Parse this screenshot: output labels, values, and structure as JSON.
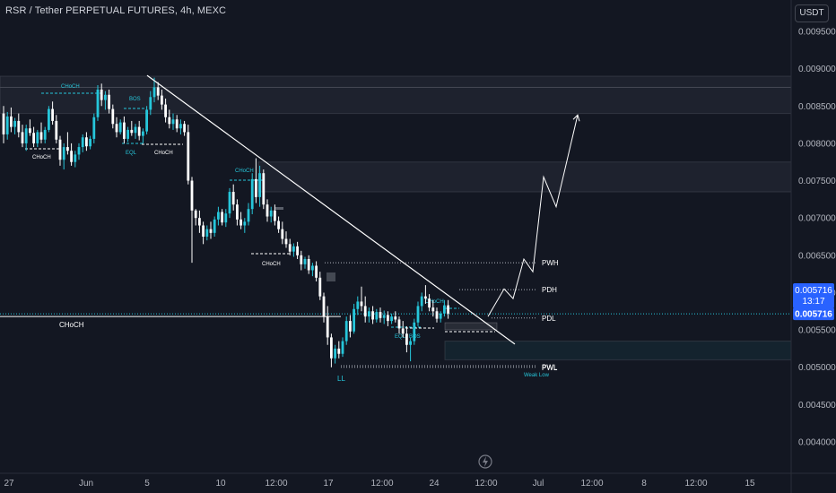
{
  "header": {
    "symbol_title": "RSR / Tether PERPETUAL FUTURES, 4h, MEXC",
    "currency_button": "USDT"
  },
  "price_tag": {
    "price": "0.005716",
    "countdown": "13:17",
    "last": "0.005716"
  },
  "colors": {
    "background": "#131722",
    "candle_up": "#26c6da",
    "candle_down": "#ffffff",
    "annotation_cyan": "#26c6da",
    "price_tag_blue": "#2962ff"
  },
  "chart_data": {
    "type": "candlestick",
    "title": "RSR / Tether PERPETUAL FUTURES, 4h, MEXC",
    "ylim": [
      0.0037,
      0.0099
    ],
    "y_ticks": [
      "0.009500",
      "0.009000",
      "0.008500",
      "0.008000",
      "0.007500",
      "0.007000",
      "0.006500",
      "0.006000",
      "0.005500",
      "0.005000",
      "0.004500",
      "0.004000"
    ],
    "x_ticks": [
      "27",
      "Jun",
      "5",
      "10",
      "12:00",
      "17",
      "12:00",
      "24",
      "12:00",
      "Jul",
      "12:00",
      "8",
      "12:00",
      "15"
    ],
    "candles": [
      [
        0.0084,
        0.0085,
        0.008,
        0.00812
      ],
      [
        0.00812,
        0.00842,
        0.00805,
        0.00836
      ],
      [
        0.00836,
        0.00848,
        0.00815,
        0.00822
      ],
      [
        0.00822,
        0.00834,
        0.00812,
        0.0083
      ],
      [
        0.0083,
        0.0084,
        0.00808,
        0.00815
      ],
      [
        0.00815,
        0.00825,
        0.00795,
        0.008
      ],
      [
        0.008,
        0.00825,
        0.0079,
        0.0082
      ],
      [
        0.0082,
        0.00832,
        0.0081,
        0.00814
      ],
      [
        0.00814,
        0.00822,
        0.00795,
        0.008
      ],
      [
        0.008,
        0.00818,
        0.00795,
        0.00815
      ],
      [
        0.00815,
        0.00828,
        0.008,
        0.00805
      ],
      [
        0.00805,
        0.00822,
        0.008,
        0.00818
      ],
      [
        0.00818,
        0.0085,
        0.00815,
        0.00846
      ],
      [
        0.00846,
        0.00856,
        0.00825,
        0.0083
      ],
      [
        0.0083,
        0.00838,
        0.008,
        0.00805
      ],
      [
        0.00805,
        0.0081,
        0.0077,
        0.00778
      ],
      [
        0.00778,
        0.008,
        0.00765,
        0.00795
      ],
      [
        0.00795,
        0.00815,
        0.00785,
        0.0079
      ],
      [
        0.0079,
        0.008,
        0.0077,
        0.00775
      ],
      [
        0.00775,
        0.0079,
        0.00768,
        0.00785
      ],
      [
        0.00785,
        0.008,
        0.00778,
        0.00795
      ],
      [
        0.00795,
        0.00812,
        0.00788,
        0.00808
      ],
      [
        0.00808,
        0.00815,
        0.0079,
        0.00796
      ],
      [
        0.00796,
        0.0081,
        0.00792,
        0.00806
      ],
      [
        0.00806,
        0.0084,
        0.008,
        0.00835
      ],
      [
        0.00835,
        0.00878,
        0.0083,
        0.00872
      ],
      [
        0.00872,
        0.0088,
        0.0085,
        0.00858
      ],
      [
        0.00858,
        0.0087,
        0.00845,
        0.00865
      ],
      [
        0.00865,
        0.00872,
        0.0084,
        0.00846
      ],
      [
        0.00846,
        0.00852,
        0.0082,
        0.00826
      ],
      [
        0.00826,
        0.00835,
        0.00808,
        0.00815
      ],
      [
        0.00815,
        0.00832,
        0.00812,
        0.00828
      ],
      [
        0.00828,
        0.00836,
        0.008,
        0.00806
      ],
      [
        0.00806,
        0.00822,
        0.00802,
        0.00818
      ],
      [
        0.00818,
        0.0083,
        0.0081,
        0.00814
      ],
      [
        0.00814,
        0.00826,
        0.00806,
        0.00822
      ],
      [
        0.00822,
        0.0083,
        0.00804,
        0.0081
      ],
      [
        0.0081,
        0.0082,
        0.008,
        0.00816
      ],
      [
        0.00816,
        0.0085,
        0.00812,
        0.00845
      ],
      [
        0.00845,
        0.0087,
        0.00838,
        0.00862
      ],
      [
        0.00862,
        0.00888,
        0.00855,
        0.00875
      ],
      [
        0.00875,
        0.00882,
        0.00858,
        0.00864
      ],
      [
        0.00864,
        0.00872,
        0.00845,
        0.00852
      ],
      [
        0.00852,
        0.0086,
        0.00828,
        0.00835
      ],
      [
        0.00835,
        0.00845,
        0.0082,
        0.00826
      ],
      [
        0.00826,
        0.0084,
        0.00818,
        0.00832
      ],
      [
        0.00832,
        0.00838,
        0.00815,
        0.0082
      ],
      [
        0.0082,
        0.00832,
        0.00812,
        0.00826
      ],
      [
        0.00826,
        0.0083,
        0.0081,
        0.00815
      ],
      [
        0.00815,
        0.00825,
        0.00745,
        0.0075
      ],
      [
        0.0075,
        0.00755,
        0.0064,
        0.0071
      ],
      [
        0.0071,
        0.00712,
        0.0069,
        0.007
      ],
      [
        0.007,
        0.0071,
        0.0068,
        0.0069
      ],
      [
        0.0069,
        0.00695,
        0.00665,
        0.00675
      ],
      [
        0.00675,
        0.0069,
        0.0067,
        0.00685
      ],
      [
        0.00685,
        0.00695,
        0.00672,
        0.0068
      ],
      [
        0.0068,
        0.00702,
        0.00675,
        0.00698
      ],
      [
        0.00698,
        0.00715,
        0.0069,
        0.00708
      ],
      [
        0.00708,
        0.00712,
        0.0069,
        0.00694
      ],
      [
        0.00694,
        0.00712,
        0.00688,
        0.00706
      ],
      [
        0.00706,
        0.0074,
        0.007,
        0.00735
      ],
      [
        0.00735,
        0.00745,
        0.0071,
        0.00718
      ],
      [
        0.00718,
        0.00725,
        0.0069,
        0.00698
      ],
      [
        0.00698,
        0.00708,
        0.00685,
        0.0069
      ],
      [
        0.0069,
        0.007,
        0.0068,
        0.00695
      ],
      [
        0.00695,
        0.0072,
        0.0069,
        0.00712
      ],
      [
        0.00712,
        0.0076,
        0.00705,
        0.00752
      ],
      [
        0.00752,
        0.0078,
        0.0072,
        0.00728
      ],
      [
        0.00728,
        0.0077,
        0.00715,
        0.0076
      ],
      [
        0.0076,
        0.00765,
        0.00712,
        0.00718
      ],
      [
        0.00718,
        0.00725,
        0.00695,
        0.00702
      ],
      [
        0.00702,
        0.00715,
        0.00694,
        0.0071
      ],
      [
        0.0071,
        0.00718,
        0.0069,
        0.00696
      ],
      [
        0.00696,
        0.00702,
        0.0068,
        0.00685
      ],
      [
        0.00685,
        0.00695,
        0.00665,
        0.00672
      ],
      [
        0.00672,
        0.00682,
        0.0066,
        0.00665
      ],
      [
        0.00665,
        0.00672,
        0.0065,
        0.00655
      ],
      [
        0.00655,
        0.00666,
        0.00648,
        0.00662
      ],
      [
        0.00662,
        0.00668,
        0.00645,
        0.0065
      ],
      [
        0.0065,
        0.00656,
        0.0063,
        0.00638
      ],
      [
        0.00638,
        0.00648,
        0.00632,
        0.00645
      ],
      [
        0.00645,
        0.0065,
        0.00625,
        0.0063
      ],
      [
        0.0063,
        0.0064,
        0.00622,
        0.00636
      ],
      [
        0.00636,
        0.00642,
        0.00615,
        0.0062
      ],
      [
        0.0062,
        0.00628,
        0.0059,
        0.00595
      ],
      [
        0.00595,
        0.006,
        0.0056,
        0.00568
      ],
      [
        0.00568,
        0.00582,
        0.0053,
        0.0054
      ],
      [
        0.0054,
        0.00545,
        0.005,
        0.00512
      ],
      [
        0.00512,
        0.0053,
        0.00505,
        0.00525
      ],
      [
        0.00525,
        0.00535,
        0.00512,
        0.00518
      ],
      [
        0.00518,
        0.0054,
        0.00514,
        0.00535
      ],
      [
        0.00535,
        0.00568,
        0.0053,
        0.00562
      ],
      [
        0.00562,
        0.0057,
        0.0054,
        0.00548
      ],
      [
        0.00548,
        0.00585,
        0.00545,
        0.00578
      ],
      [
        0.00578,
        0.00595,
        0.0057,
        0.00588
      ],
      [
        0.00588,
        0.00608,
        0.00575,
        0.00582
      ],
      [
        0.00582,
        0.00595,
        0.0056,
        0.00568
      ],
      [
        0.00568,
        0.0058,
        0.0056,
        0.00575
      ],
      [
        0.00575,
        0.00582,
        0.00558,
        0.00564
      ],
      [
        0.00564,
        0.00578,
        0.0056,
        0.00574
      ],
      [
        0.00574,
        0.0058,
        0.0056,
        0.00566
      ],
      [
        0.00566,
        0.00576,
        0.00558,
        0.0057
      ],
      [
        0.0057,
        0.00575,
        0.00555,
        0.00562
      ],
      [
        0.00562,
        0.00572,
        0.00558,
        0.00568
      ],
      [
        0.00568,
        0.00575,
        0.0056,
        0.00564
      ],
      [
        0.00564,
        0.00568,
        0.00545,
        0.00552
      ],
      [
        0.00552,
        0.00562,
        0.0054,
        0.00545
      ],
      [
        0.00545,
        0.00555,
        0.0052,
        0.0053
      ],
      [
        0.0053,
        0.0054,
        0.00508,
        0.00535
      ],
      [
        0.00535,
        0.00565,
        0.0053,
        0.0056
      ],
      [
        0.0056,
        0.00588,
        0.00555,
        0.00582
      ],
      [
        0.00582,
        0.006,
        0.00575,
        0.00595
      ],
      [
        0.00595,
        0.0061,
        0.00585,
        0.00592
      ],
      [
        0.00592,
        0.00598,
        0.00575,
        0.0058
      ],
      [
        0.0058,
        0.0059,
        0.00568,
        0.00575
      ],
      [
        0.00575,
        0.0058,
        0.0056,
        0.00565
      ],
      [
        0.00565,
        0.00575,
        0.0056,
        0.00572
      ],
      [
        0.00572,
        0.0059,
        0.00568,
        0.00583
      ],
      [
        0.00583,
        0.0059,
        0.00565,
        0.00572
      ]
    ],
    "zones": [
      {
        "high": 0.0089,
        "low": 0.00875
      },
      {
        "high": 0.00875,
        "low": 0.0084
      },
      {
        "high": 0.00775,
        "low": 0.00735
      },
      {
        "high": 0.00535,
        "low": 0.0051
      }
    ],
    "levels": [
      {
        "label": "PWH",
        "value": 0.0064
      },
      {
        "label": "PDH",
        "value": 0.00604
      },
      {
        "label": "PDL",
        "value": 0.00566
      },
      {
        "label": "PWL",
        "value": 0.005
      },
      {
        "label": "PWL",
        "value": 0.00502
      },
      {
        "label": "CHoCH",
        "value": 0.00568
      }
    ],
    "labels_cyan": [
      "CHoCH",
      "BOS",
      "EQL",
      "CHoCH",
      "CHoCH",
      "EQL",
      "BOS",
      "LL",
      "Weak Low"
    ],
    "labels_white": [
      "CHoCH",
      "CHoCH",
      "CHoCH"
    ],
    "trendline": [
      [
        0.00891
      ],
      [
        0.00531
      ]
    ],
    "projection": [
      0.00568,
      0.00605,
      0.00592,
      0.00645,
      0.00628,
      0.00755,
      0.00715,
      0.00838
    ]
  }
}
